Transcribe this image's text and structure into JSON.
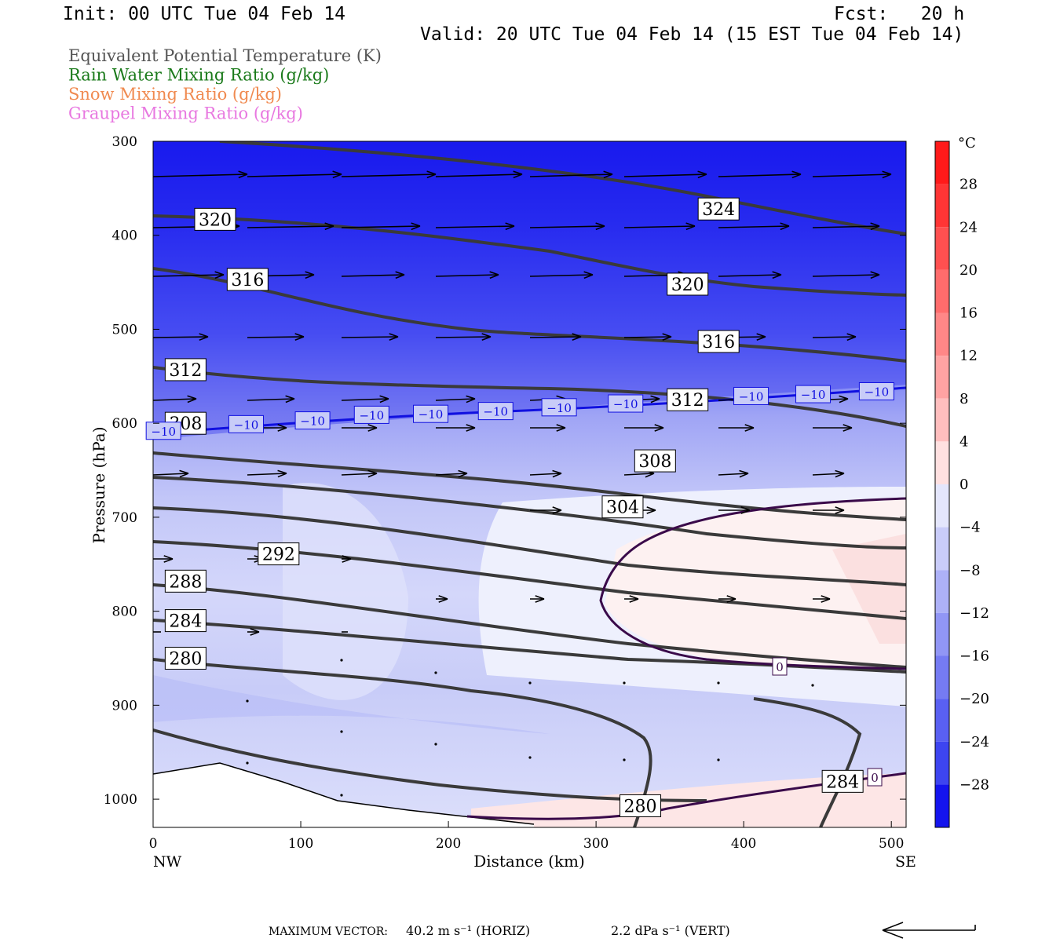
{
  "header": {
    "init": "Init: 00 UTC Tue 04 Feb 14",
    "fcst": "Fcst:   20 h",
    "valid": "Valid: 20 UTC Tue 04 Feb 14 (15 EST Tue 04 Feb 14)"
  },
  "legend": [
    {
      "label": "Equivalent Potential Temperature (K)",
      "color": "#555555"
    },
    {
      "label": "Rain Water Mixing Ratio (g/kg)",
      "color": "#1a7a1a"
    },
    {
      "label": "Snow Mixing Ratio (g/kg)",
      "color": "#f08a50"
    },
    {
      "label": "Graupel Mixing Ratio (g/kg)",
      "color": "#e878e0"
    }
  ],
  "chart_data": {
    "type": "heatmap",
    "xlabel": "Distance (km)",
    "ylabel": "Pressure (hPa)",
    "x_ticks": [
      0,
      100,
      200,
      300,
      400,
      500
    ],
    "y_ticks": [
      300,
      400,
      500,
      600,
      700,
      800,
      900,
      1000
    ],
    "xlim": [
      0,
      510
    ],
    "ylim": [
      1030,
      300
    ],
    "x_end_labels": {
      "left": "NW",
      "right": "SE"
    },
    "colorbar": {
      "unit": "°C",
      "tick_labels": [
        "28",
        "24",
        "20",
        "16",
        "12",
        "8",
        "4",
        "0",
        "−4",
        "−8",
        "−12",
        "−16",
        "−20",
        "−24",
        "−28"
      ],
      "range": [
        -32,
        32
      ]
    },
    "temperature_contours": {
      "label": "−10",
      "line_color": "#1010e0",
      "label_points": [
        {
          "x": 7,
          "p": 608
        },
        {
          "x": 63,
          "p": 601
        },
        {
          "x": 108,
          "p": 597
        },
        {
          "x": 148,
          "p": 591
        },
        {
          "x": 188,
          "p": 590
        },
        {
          "x": 232,
          "p": 587
        },
        {
          "x": 275,
          "p": 583
        },
        {
          "x": 320,
          "p": 579
        },
        {
          "x": 405,
          "p": 571
        },
        {
          "x": 447,
          "p": 569
        },
        {
          "x": 490,
          "p": 566
        }
      ],
      "zero_label": "0"
    },
    "theta_e_labels": [
      {
        "value": "324",
        "x": 383,
        "p": 372
      },
      {
        "value": "320",
        "x": 42,
        "p": 383
      },
      {
        "value": "320",
        "x": 362,
        "p": 452
      },
      {
        "value": "316",
        "x": 64,
        "p": 447
      },
      {
        "value": "316",
        "x": 383,
        "p": 513
      },
      {
        "value": "312",
        "x": 22,
        "p": 543
      },
      {
        "value": "312",
        "x": 362,
        "p": 575
      },
      {
        "value": "308",
        "x": 22,
        "p": 600
      },
      {
        "value": "308",
        "x": 340,
        "p": 640
      },
      {
        "value": "304",
        "x": 318,
        "p": 689
      },
      {
        "value": "292",
        "x": 85,
        "p": 739
      },
      {
        "value": "288",
        "x": 22,
        "p": 768
      },
      {
        "value": "284",
        "x": 22,
        "p": 810
      },
      {
        "value": "284",
        "x": 467,
        "p": 981
      },
      {
        "value": "280",
        "x": 22,
        "p": 850
      },
      {
        "value": "280",
        "x": 330,
        "p": 1007
      }
    ],
    "footer": {
      "caption": "MAXIMUM VECTOR:",
      "horiz": "40.2 m s⁻¹ (HORIZ)",
      "vert": "2.2 dPa s⁻¹ (VERT)"
    }
  }
}
